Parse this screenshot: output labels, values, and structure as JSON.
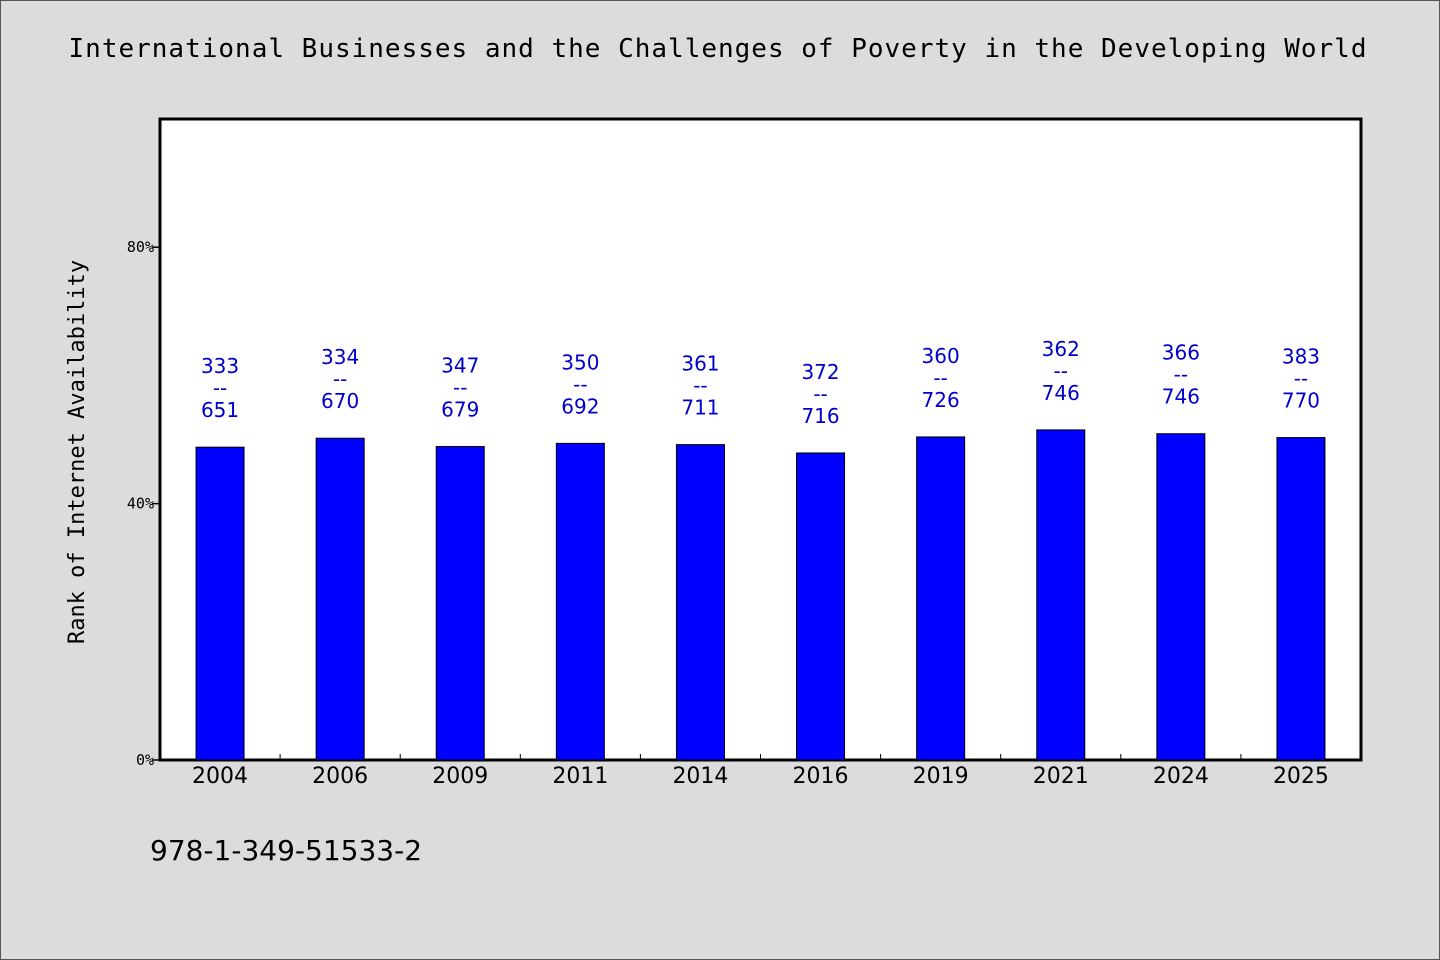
{
  "header": {
    "title": "International Businesses and the Challenges of Poverty in the Developing World"
  },
  "footer": {
    "code": "978-1-349-51533-2"
  },
  "chart_data": {
    "type": "bar",
    "title": "International Businesses and the Challenges of Poverty in the Developing World",
    "xlabel": "",
    "ylabel": "Rank of Internet Availability",
    "ylim": [
      0,
      100
    ],
    "yticks": [
      0,
      40,
      80
    ],
    "ytick_labels": [
      "0%",
      "40%",
      "80%"
    ],
    "categories": [
      "2004",
      "2006",
      "2009",
      "2011",
      "2014",
      "2016",
      "2019",
      "2021",
      "2024",
      "2025"
    ],
    "values": [
      48.8,
      50.2,
      48.9,
      49.4,
      49.2,
      47.9,
      50.4,
      51.5,
      50.9,
      50.3
    ],
    "data_labels": [
      [
        "333",
        "--",
        "651"
      ],
      [
        "334",
        "--",
        "670"
      ],
      [
        "347",
        "--",
        "679"
      ],
      [
        "350",
        "--",
        "692"
      ],
      [
        "361",
        "--",
        "711"
      ],
      [
        "372",
        "--",
        "716"
      ],
      [
        "360",
        "--",
        "726"
      ],
      [
        "362",
        "--",
        "746"
      ],
      [
        "366",
        "--",
        "746"
      ],
      [
        "383",
        "--",
        "770"
      ]
    ],
    "bar_color": "#0000ff",
    "label_color": "#0000cc",
    "grid": false,
    "legend": "none"
  }
}
